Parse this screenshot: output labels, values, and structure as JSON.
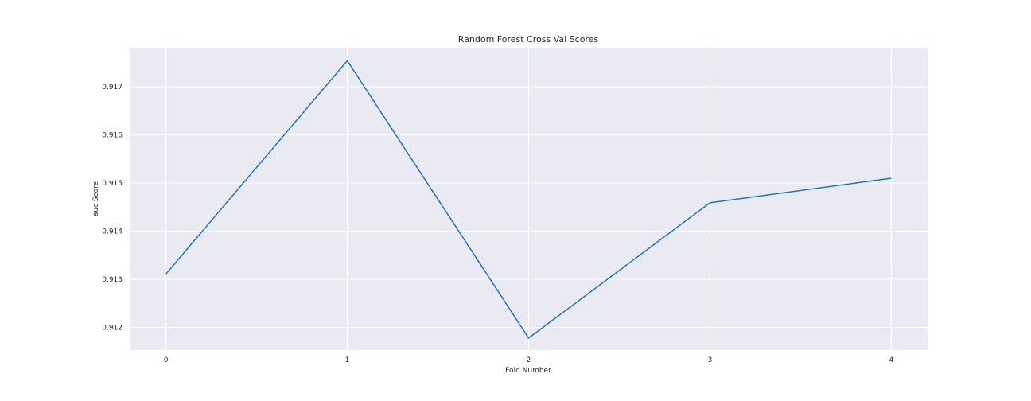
{
  "chart_data": {
    "type": "line",
    "title": "Random Forest Cross Val Scores",
    "xlabel": "Fold Number",
    "ylabel": "auc Score",
    "x": [
      0,
      1,
      2,
      3,
      4
    ],
    "series": [
      {
        "values": [
          0.91311,
          0.91754,
          0.91178,
          0.91459,
          0.9151
        ]
      }
    ],
    "xlim": [
      -0.2,
      4.2
    ],
    "ylim": [
      0.91153,
      0.91781
    ],
    "xticks": [
      0,
      1,
      2,
      3,
      4
    ],
    "xtick_labels": [
      "0",
      "1",
      "2",
      "3",
      "4"
    ],
    "yticks": [
      0.912,
      0.913,
      0.914,
      0.915,
      0.916,
      0.917
    ],
    "ytick_labels": [
      "0.912",
      "0.913",
      "0.914",
      "0.915",
      "0.916",
      "0.917"
    ],
    "grid": true,
    "legend": "none",
    "colors": {
      "line": "#1f77b4",
      "plot_bg": "#eaeaf2",
      "grid": "#ffffff"
    }
  }
}
